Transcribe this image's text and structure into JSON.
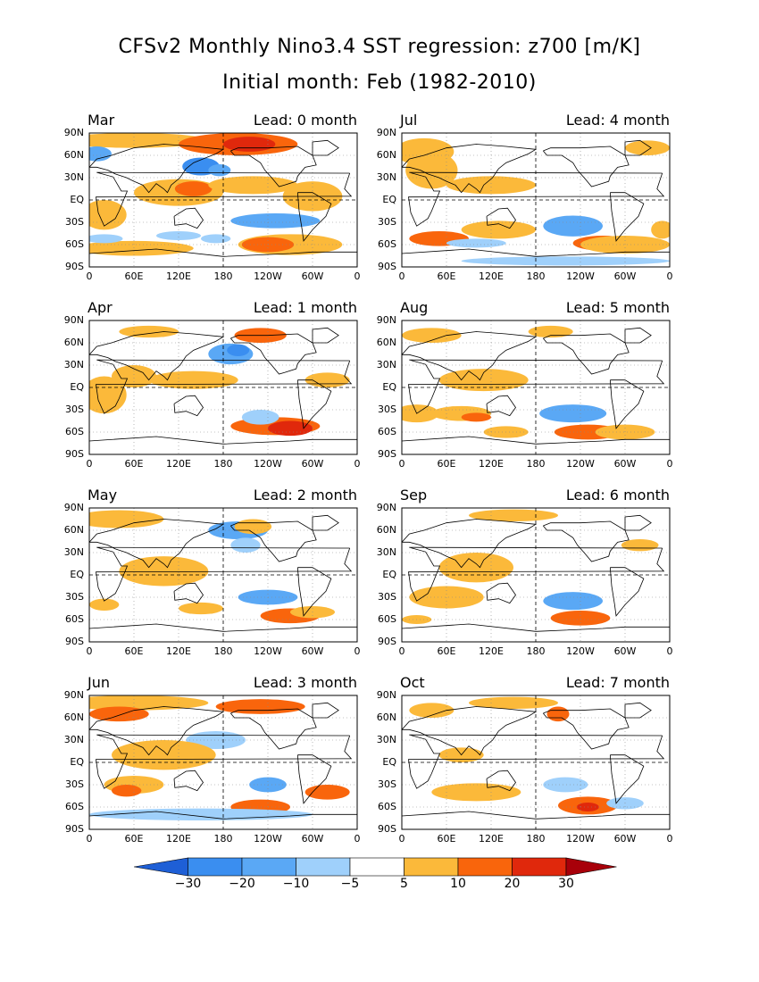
{
  "title_line1": "CFSv2 Monthly Nino3.4 SST regression: z700 [m/K]",
  "title_line2": "Initial month: Feb (1982-2010)",
  "lat_ticks": [
    "90N",
    "60N",
    "30N",
    "EQ",
    "30S",
    "60S",
    "90S"
  ],
  "lon_ticks": [
    "0",
    "60E",
    "120E",
    "180",
    "120W",
    "60W",
    "0"
  ],
  "panels": [
    {
      "month": "Mar",
      "lead": "Lead: 0 month"
    },
    {
      "month": "Jul",
      "lead": "Lead: 4 month"
    },
    {
      "month": "Apr",
      "lead": "Lead: 1 month"
    },
    {
      "month": "Aug",
      "lead": "Lead: 5 month"
    },
    {
      "month": "May",
      "lead": "Lead: 2 month"
    },
    {
      "month": "Sep",
      "lead": "Lead: 6 month"
    },
    {
      "month": "Jun",
      "lead": "Lead: 3 month"
    },
    {
      "month": "Oct",
      "lead": "Lead: 7 month"
    }
  ],
  "colorbar": {
    "labels": [
      "-30",
      "-20",
      "-10",
      "-5",
      "5",
      "10",
      "20",
      "30"
    ],
    "colors": [
      "#1e5fd6",
      "#3a8ef0",
      "#5aa8f5",
      "#9fd0fb",
      "#ffffff",
      "#fbb93a",
      "#f9650c",
      "#e0280c",
      "#a8000a"
    ]
  },
  "colors": {
    "warm1": "#fbb93a",
    "warm2": "#f9650c",
    "warm3": "#e0280c",
    "cool1": "#9fd0fb",
    "cool2": "#5aa8f5",
    "cool3": "#3a8ef0"
  }
}
